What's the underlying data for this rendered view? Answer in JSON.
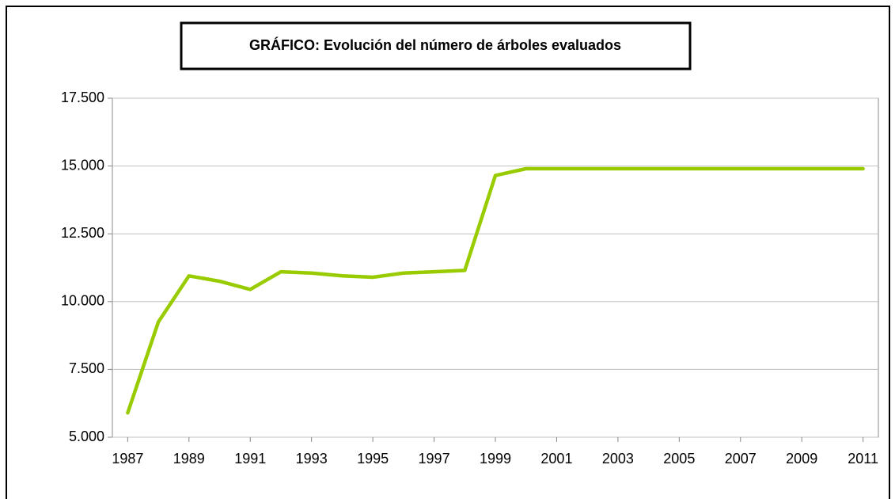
{
  "chart_data": {
    "type": "line",
    "title": "GRÁFICO: Evolución del número de árboles evaluados",
    "x": [
      1987,
      1988,
      1989,
      1990,
      1991,
      1992,
      1993,
      1994,
      1995,
      1996,
      1997,
      1998,
      1999,
      2000,
      2001,
      2002,
      2003,
      2004,
      2005,
      2006,
      2007,
      2008,
      2009,
      2010,
      2011
    ],
    "series": [
      {
        "color": "#99cc00",
        "values": [
          5900,
          9250,
          10950,
          10750,
          10450,
          11100,
          11050,
          10950,
          10900,
          11050,
          11100,
          11150,
          14650,
          14900,
          14900,
          14900,
          14900,
          14900,
          14900,
          14900,
          14900,
          14900,
          14900,
          14900,
          14900
        ]
      }
    ],
    "xlim": [
      1986.5,
      2011.5
    ],
    "xticks": [
      1987,
      1989,
      1991,
      1993,
      1995,
      1997,
      1999,
      2001,
      2003,
      2005,
      2007,
      2009,
      2011
    ],
    "ylim": [
      5000,
      17500
    ],
    "yticks": [
      {
        "value": 5000,
        "label": "5.000"
      },
      {
        "value": 7500,
        "label": "7.500"
      },
      {
        "value": 10000,
        "label": "10.000"
      },
      {
        "value": 12500,
        "label": "12.500"
      },
      {
        "value": 15000,
        "label": "15.000"
      },
      {
        "value": 17500,
        "label": "17.500"
      }
    ],
    "grid": true
  }
}
